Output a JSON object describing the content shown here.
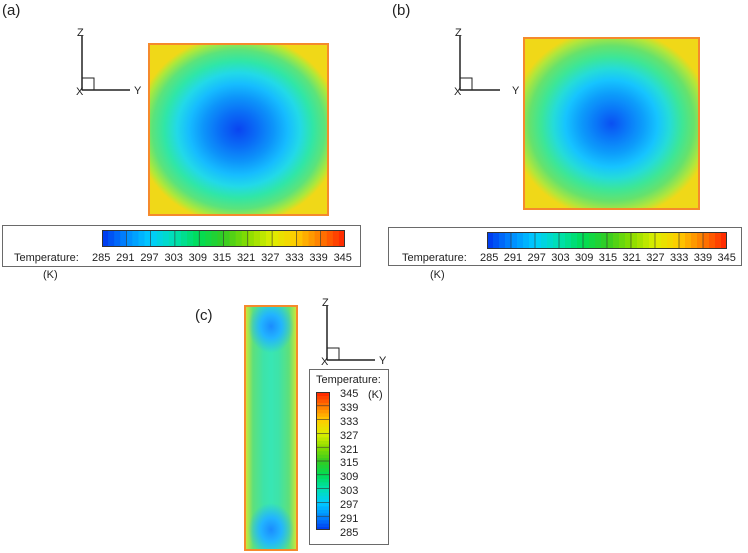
{
  "panels": {
    "a": {
      "label": "(a)"
    },
    "b": {
      "label": "(b)"
    },
    "c": {
      "label": "(c)"
    }
  },
  "axes": {
    "z": "Z",
    "x": "X",
    "y": "Y"
  },
  "legend": {
    "title": "Temperature:",
    "unit": "(K)",
    "ticks": [
      "285",
      "291",
      "297",
      "303",
      "309",
      "315",
      "321",
      "327",
      "333",
      "339",
      "345"
    ],
    "ticks_desc": [
      "345",
      "339",
      "333",
      "327",
      "321",
      "315",
      "309",
      "303",
      "297",
      "291",
      "285"
    ]
  },
  "colormap": {
    "stops": [
      "#0033ee",
      "#0088ff",
      "#00ccff",
      "#00e0b0",
      "#00dd55",
      "#33cc22",
      "#88dd00",
      "#ddee00",
      "#ffcc00",
      "#ff7a00",
      "#ff2200"
    ]
  }
}
